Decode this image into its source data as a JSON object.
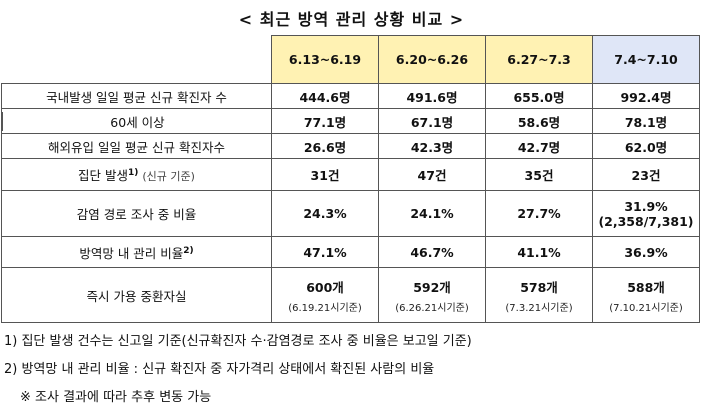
{
  "title": "< 최근 방역 관리 상황 비교 >",
  "columns": [
    "6.13~6.19",
    "6.20~6.26",
    "6.27~7.3",
    "7.4~7.10"
  ],
  "rows": [
    {
      "label": "국내발생 일일 평균 신규 확진자 수",
      "values": [
        "444.6명",
        "491.6명",
        "655.0명",
        "992.4명"
      ]
    },
    {
      "label": "60세 이상",
      "values": [
        "77.1명",
        "67.1명",
        "58.6명",
        "78.1명"
      ]
    },
    {
      "label": "해외유입 일일 평균 신규 확진자수",
      "values": [
        "26.6명",
        "42.3명",
        "42.7명",
        "62.0명"
      ]
    },
    {
      "label": "집단 발생",
      "label_sup": "1)",
      "label_extra": "(신규 기준)",
      "values": [
        "31건",
        "47건",
        "35건",
        "23건"
      ]
    },
    {
      "label": "감염 경로 조사 중 비율",
      "values": [
        "24.3%",
        "24.1%",
        "27.7%",
        "31.9%"
      ],
      "last_extra": "(2,358/7,381)"
    },
    {
      "label": "방역망 내 관리 비율",
      "label_sup": "2)",
      "values": [
        "47.1%",
        "46.7%",
        "41.1%",
        "36.9%"
      ]
    },
    {
      "label": "즉시 가용 중환자실",
      "values": [
        "600개",
        "592개",
        "578개",
        "588개"
      ],
      "subs": [
        "(6.19.21시기준)",
        "(6.26.21시기준)",
        "(7.3.21시기준)",
        "(7.10.21시기준)"
      ]
    }
  ],
  "notes": [
    "1) 집단 발생 건수는 신고일 기준(신규확진자 수·감염경로 조사 중 비율은 보고일 기준)",
    "2) 방역망 내 관리 비율 : 신규 확진자 중 자가격리 상태에서 확진된 사람의 비율",
    "※ 조사 결과에 따라 추후 변동 가능"
  ]
}
